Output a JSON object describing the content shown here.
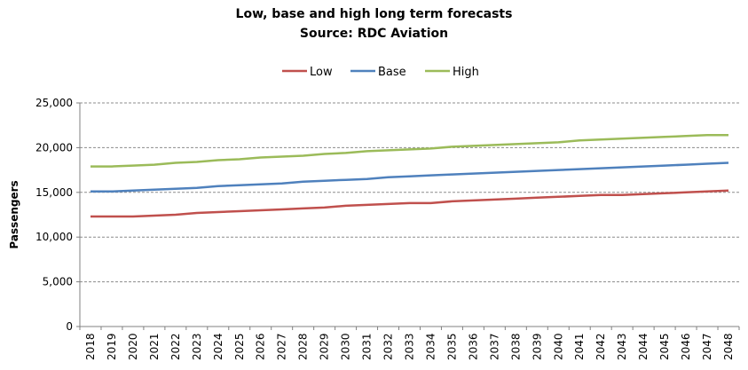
{
  "chart_data": {
    "type": "line",
    "title": "Low, base and high long term forecasts",
    "subtitle": "Source: RDC Aviation",
    "xlabel": "",
    "ylabel": "Passengers",
    "ylim": [
      0,
      25000
    ],
    "yticks": [
      0,
      5000,
      10000,
      15000,
      20000,
      25000
    ],
    "ytick_labels": [
      "0",
      "5,000",
      "10,000",
      "15,000",
      "20,000",
      "25,000"
    ],
    "grid": "horizontal dashed",
    "legend": "top-center",
    "x": [
      "2018",
      "2019",
      "2020",
      "2021",
      "2022",
      "2023",
      "2024",
      "2025",
      "2026",
      "2027",
      "2028",
      "2029",
      "2030",
      "2031",
      "2032",
      "2033",
      "2034",
      "2035",
      "2036",
      "2037",
      "2038",
      "2039",
      "2040",
      "2041",
      "2042",
      "2043",
      "2044",
      "2045",
      "2046",
      "2047",
      "2048"
    ],
    "series": [
      {
        "name": "Low",
        "color": "#c0504d",
        "values": [
          12300,
          12300,
          12300,
          12400,
          12500,
          12700,
          12800,
          12900,
          13000,
          13100,
          13200,
          13300,
          13500,
          13600,
          13700,
          13800,
          13800,
          14000,
          14100,
          14200,
          14300,
          14400,
          14500,
          14600,
          14700,
          14700,
          14800,
          14900,
          15000,
          15100,
          15200
        ]
      },
      {
        "name": "Base",
        "color": "#4f81bd",
        "values": [
          15100,
          15100,
          15200,
          15300,
          15400,
          15500,
          15700,
          15800,
          15900,
          16000,
          16200,
          16300,
          16400,
          16500,
          16700,
          16800,
          16900,
          17000,
          17100,
          17200,
          17300,
          17400,
          17500,
          17600,
          17700,
          17800,
          17900,
          18000,
          18100,
          18200,
          18300
        ]
      },
      {
        "name": "High",
        "color": "#9bbb59",
        "values": [
          17900,
          17900,
          18000,
          18100,
          18300,
          18400,
          18600,
          18700,
          18900,
          19000,
          19100,
          19300,
          19400,
          19600,
          19700,
          19800,
          19900,
          20100,
          20200,
          20300,
          20400,
          20500,
          20600,
          20800,
          20900,
          21000,
          21100,
          21200,
          21300,
          21400,
          21400
        ]
      }
    ]
  }
}
